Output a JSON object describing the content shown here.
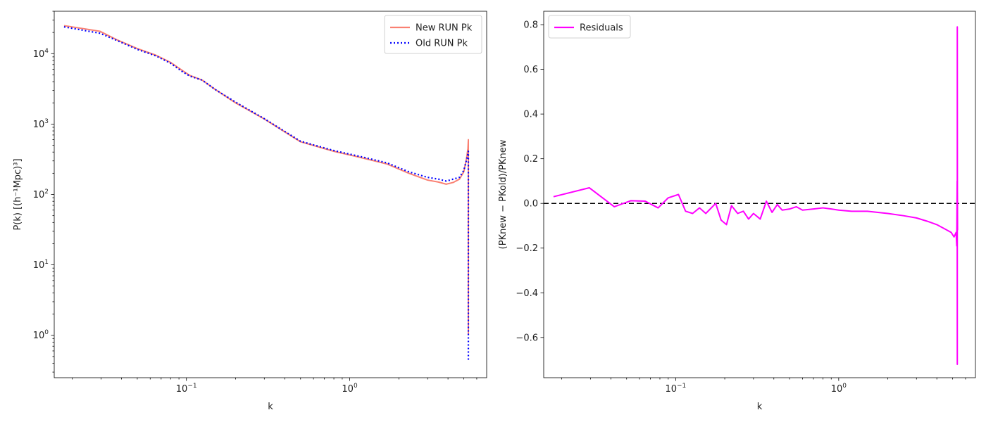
{
  "chart_data": [
    {
      "type": "line",
      "xscale": "log",
      "yscale": "log",
      "xlabel": "k",
      "ylabel": "P(k) [(h⁻¹Mpc)³]",
      "xlim": [
        0.0155,
        6.9
      ],
      "ylim": [
        0.25,
        40000
      ],
      "xticks": [
        {
          "value": 0.1,
          "mant": "10",
          "exp": "−1"
        },
        {
          "value": 1,
          "mant": "10",
          "exp": "0"
        }
      ],
      "yticks": [
        {
          "value": 1,
          "mant": "10",
          "exp": "0"
        },
        {
          "value": 10,
          "mant": "10",
          "exp": "1"
        },
        {
          "value": 100,
          "mant": "10",
          "exp": "2"
        },
        {
          "value": 1000,
          "mant": "10",
          "exp": "3"
        },
        {
          "value": 10000,
          "mant": "10",
          "exp": "4"
        }
      ],
      "grid": false,
      "legend_position": "top-right",
      "series": [
        {
          "name": "New RUN Pk",
          "color": "#fa8072",
          "style": "solid",
          "x": [
            0.0178,
            0.0295,
            0.038,
            0.05,
            0.065,
            0.08,
            0.095,
            0.105,
            0.125,
            0.15,
            0.2,
            0.3,
            0.5,
            0.8,
            1.2,
            1.7,
            2.3,
            3.0,
            3.5,
            3.9,
            4.3,
            4.7,
            5.0,
            5.2,
            5.3,
            5.33,
            5.33
          ],
          "y": [
            25000,
            20800,
            15500,
            11800,
            9500,
            7500,
            5700,
            4900,
            4200,
            3100,
            2000,
            1180,
            560,
            410,
            330,
            270,
            200,
            160,
            150,
            140,
            148,
            165,
            210,
            330,
            450,
            600,
            1.0
          ]
        },
        {
          "name": "Old RUN Pk",
          "color": "#0000ff",
          "style": "dotted",
          "x": [
            0.0178,
            0.0295,
            0.038,
            0.05,
            0.065,
            0.08,
            0.095,
            0.105,
            0.125,
            0.15,
            0.2,
            0.3,
            0.5,
            0.8,
            1.2,
            1.7,
            2.3,
            3.0,
            3.5,
            3.9,
            4.3,
            4.7,
            5.0,
            5.2,
            5.3,
            5.33,
            5.33
          ],
          "y": [
            24000,
            19500,
            15200,
            11500,
            9300,
            7300,
            5500,
            4800,
            4200,
            3100,
            2050,
            1190,
            570,
            420,
            340,
            280,
            210,
            175,
            165,
            155,
            165,
            175,
            220,
            310,
            380,
            410,
            0.45
          ]
        }
      ]
    },
    {
      "type": "line",
      "xscale": "log",
      "yscale": "linear",
      "xlabel": "k",
      "ylabel": "(PKnew − PKold)/PKnew",
      "xlim": [
        0.0155,
        6.9
      ],
      "ylim": [
        -0.78,
        0.86
      ],
      "xticks": [
        {
          "value": 0.1,
          "mant": "10",
          "exp": "−1"
        },
        {
          "value": 1,
          "mant": "10",
          "exp": "0"
        }
      ],
      "yticks": [
        {
          "value": -0.6,
          "label": "−0.6"
        },
        {
          "value": -0.4,
          "label": "−0.4"
        },
        {
          "value": -0.2,
          "label": "−0.2"
        },
        {
          "value": 0.0,
          "label": "0.0"
        },
        {
          "value": 0.2,
          "label": "0.2"
        },
        {
          "value": 0.4,
          "label": "0.4"
        },
        {
          "value": 0.6,
          "label": "0.6"
        },
        {
          "value": 0.8,
          "label": "0.8"
        }
      ],
      "grid": false,
      "legend_position": "top-left",
      "reference_line": {
        "y": 0,
        "color": "#000000",
        "style": "dashed"
      },
      "series": [
        {
          "name": "Residuals",
          "color": "#ff00ff",
          "style": "solid",
          "x": [
            0.0178,
            0.0295,
            0.042,
            0.053,
            0.065,
            0.078,
            0.09,
            0.104,
            0.115,
            0.127,
            0.14,
            0.153,
            0.176,
            0.19,
            0.205,
            0.22,
            0.24,
            0.26,
            0.28,
            0.3,
            0.33,
            0.36,
            0.39,
            0.42,
            0.45,
            0.5,
            0.55,
            0.6,
            0.7,
            0.8,
            0.9,
            1.0,
            1.2,
            1.5,
            2.0,
            2.5,
            3.0,
            3.5,
            4.0,
            4.5,
            4.9,
            5.1,
            5.25,
            5.3,
            5.33,
            5.34,
            5.34,
            5.35,
            5.35,
            5.36
          ],
          "y": [
            0.03,
            0.07,
            -0.015,
            0.012,
            0.01,
            -0.02,
            0.025,
            0.04,
            -0.035,
            -0.045,
            -0.02,
            -0.045,
            0.0,
            -0.075,
            -0.095,
            -0.01,
            -0.045,
            -0.035,
            -0.07,
            -0.045,
            -0.07,
            0.01,
            -0.04,
            -0.005,
            -0.03,
            -0.025,
            -0.015,
            -0.03,
            -0.025,
            -0.02,
            -0.025,
            -0.03,
            -0.035,
            -0.035,
            -0.045,
            -0.055,
            -0.065,
            -0.08,
            -0.095,
            -0.115,
            -0.13,
            -0.15,
            -0.13,
            -0.19,
            0.1,
            -0.72,
            0.79,
            -0.1,
            0.05,
            -0.12
          ]
        }
      ]
    }
  ]
}
